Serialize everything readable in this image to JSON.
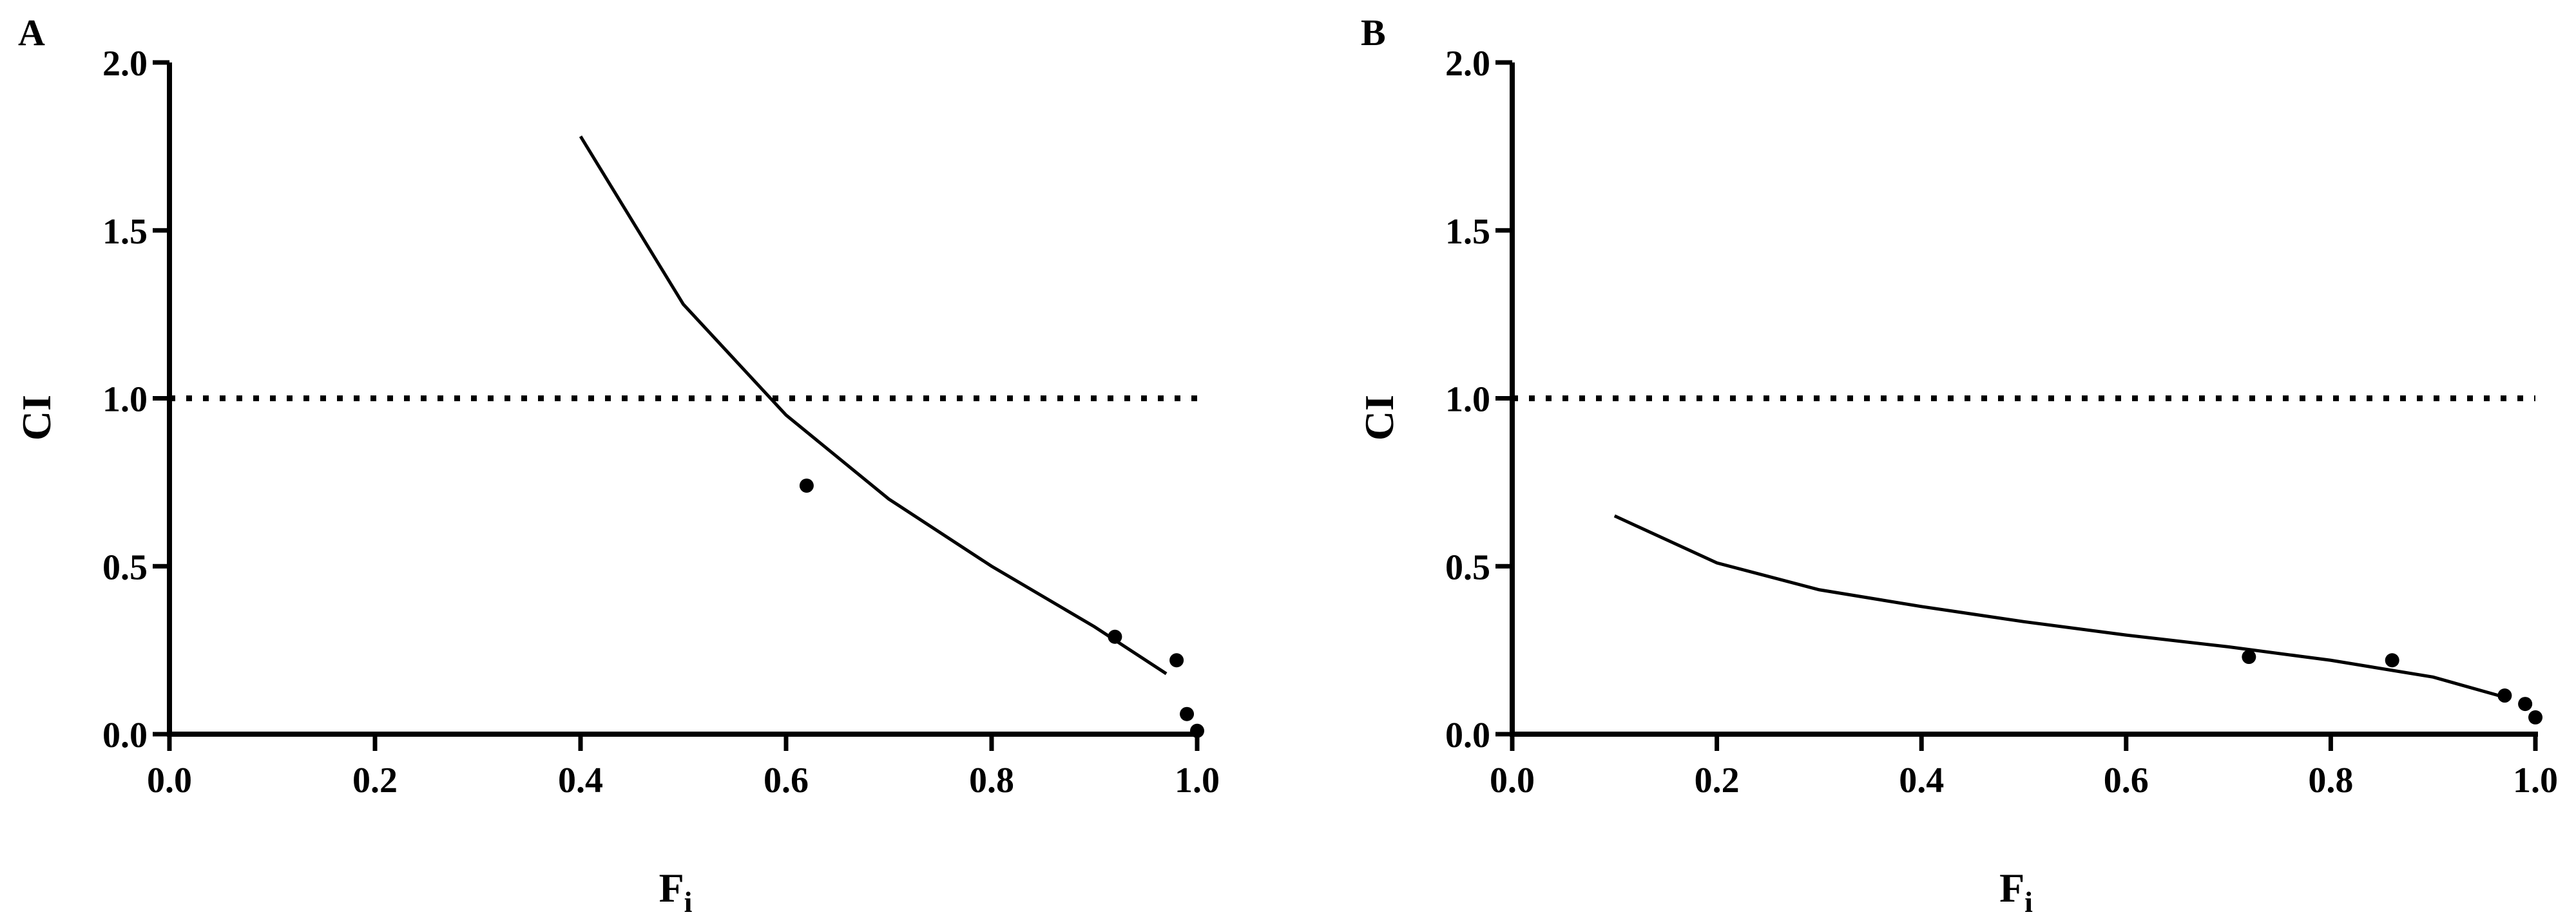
{
  "chart_data": [
    {
      "panel": "A",
      "type": "line",
      "xlabel": "F",
      "xlabel_subscript": "i",
      "ylabel": "CI",
      "xlim": [
        0.0,
        1.0
      ],
      "ylim": [
        0.0,
        2.0
      ],
      "xticks": [
        "0.0",
        "0.2",
        "0.4",
        "0.6",
        "0.8",
        "1.0"
      ],
      "yticks": [
        "0.0",
        "0.5",
        "1.0",
        "1.5",
        "2.0"
      ],
      "reference_line": {
        "y": 1.0,
        "style": "dotted"
      },
      "series": [
        {
          "kind": "line",
          "x": [
            0.4,
            0.5,
            0.6,
            0.7,
            0.8,
            0.9,
            0.97
          ],
          "y": [
            1.78,
            1.28,
            0.95,
            0.7,
            0.5,
            0.32,
            0.18
          ]
        },
        {
          "kind": "scatter",
          "x": [
            0.62,
            0.92,
            0.98,
            0.99,
            1.0
          ],
          "y": [
            0.74,
            0.29,
            0.22,
            0.06,
            0.01
          ]
        }
      ],
      "grid": false,
      "color": "#000000"
    },
    {
      "panel": "B",
      "type": "line",
      "xlabel": "F",
      "xlabel_subscript": "i",
      "ylabel": "CI",
      "xlim": [
        0.0,
        1.0
      ],
      "ylim": [
        0.0,
        2.0
      ],
      "xticks": [
        "0.0",
        "0.2",
        "0.4",
        "0.6",
        "0.8",
        "1.0"
      ],
      "yticks": [
        "0.0",
        "0.5",
        "1.0",
        "1.5",
        "2.0"
      ],
      "reference_line": {
        "y": 1.0,
        "style": "dotted"
      },
      "series": [
        {
          "kind": "line",
          "x": [
            0.1,
            0.2,
            0.3,
            0.4,
            0.5,
            0.6,
            0.7,
            0.8,
            0.9,
            0.97
          ],
          "y": [
            0.65,
            0.51,
            0.43,
            0.38,
            0.335,
            0.295,
            0.26,
            0.22,
            0.17,
            0.11
          ]
        },
        {
          "kind": "scatter",
          "x": [
            0.72,
            0.86,
            0.97,
            0.99,
            1.0
          ],
          "y": [
            0.23,
            0.22,
            0.115,
            0.09,
            0.05
          ]
        }
      ],
      "grid": false,
      "color": "#000000"
    }
  ]
}
